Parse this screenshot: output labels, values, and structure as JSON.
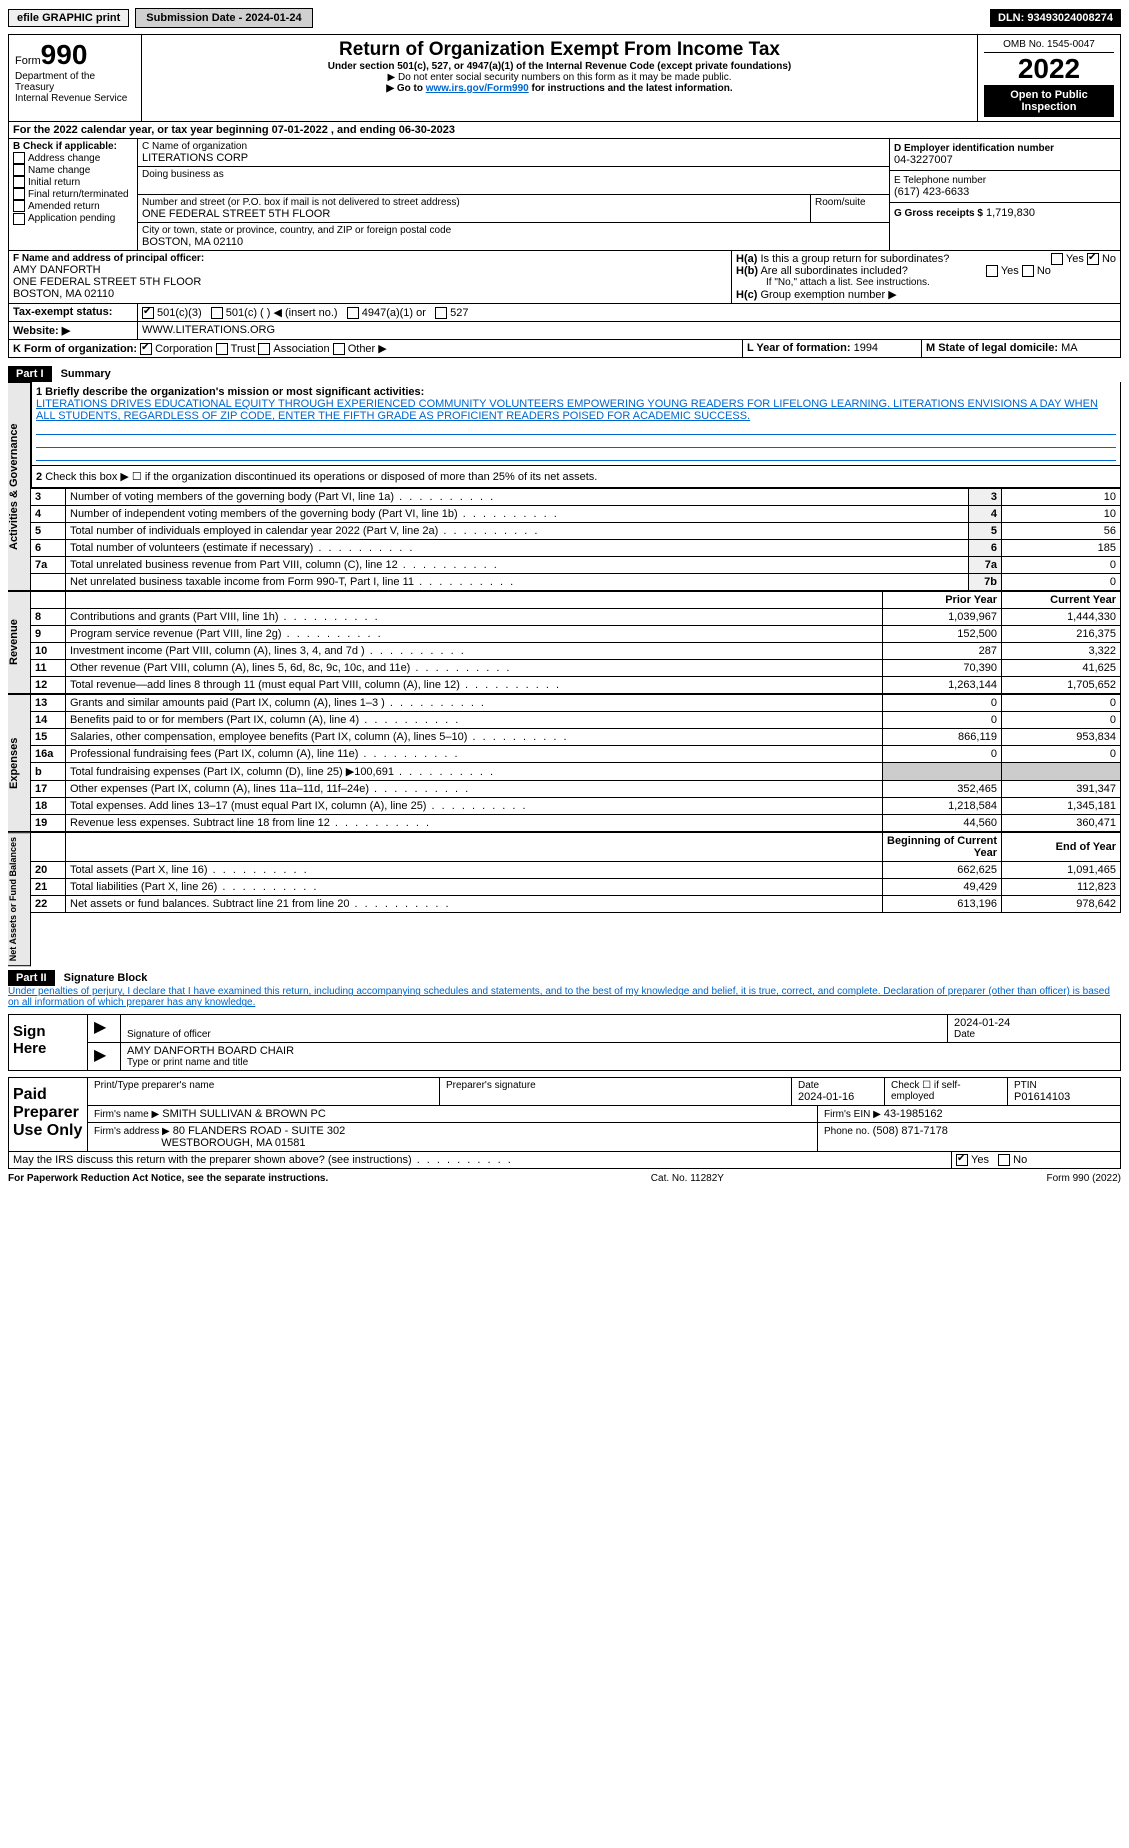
{
  "topbar": {
    "efile": "efile GRAPHIC print",
    "submission_label": "Submission Date - 2024-01-24",
    "dln": "DLN: 93493024008274"
  },
  "header": {
    "form_prefix": "Form",
    "form_number": "990",
    "dept": "Department of the Treasury",
    "irs": "Internal Revenue Service",
    "title": "Return of Organization Exempt From Income Tax",
    "subtitle": "Under section 501(c), 527, or 4947(a)(1) of the Internal Revenue Code (except private foundations)",
    "note1": "▶ Do not enter social security numbers on this form as it may be made public.",
    "note2_pre": "▶ Go to ",
    "note2_link": "www.irs.gov/Form990",
    "note2_post": " for instructions and the latest information.",
    "omb": "OMB No. 1545-0047",
    "year": "2022",
    "open": "Open to Public Inspection"
  },
  "A": {
    "text": "For the 2022 calendar year, or tax year beginning 07-01-2022   , and ending 06-30-2023"
  },
  "B": {
    "label": "B Check if applicable:",
    "items": [
      "Address change",
      "Name change",
      "Initial return",
      "Final return/terminated",
      "Amended return",
      "Application pending"
    ]
  },
  "C": {
    "name_label": "C Name of organization",
    "name": "LITERATIONS CORP",
    "dba_label": "Doing business as",
    "street_label": "Number and street (or P.O. box if mail is not delivered to street address)",
    "room_label": "Room/suite",
    "street": "ONE FEDERAL STREET 5TH FLOOR",
    "city_label": "City or town, state or province, country, and ZIP or foreign postal code",
    "city": "BOSTON, MA  02110"
  },
  "D": {
    "label": "D Employer identification number",
    "value": "04-3227007"
  },
  "E": {
    "label": "E Telephone number",
    "value": "(617) 423-6633"
  },
  "G": {
    "label": "G Gross receipts $",
    "value": "1,719,830"
  },
  "F": {
    "label": "F Name and address of principal officer:",
    "name": "AMY DANFORTH",
    "addr1": "ONE FEDERAL STREET 5TH FLOOR",
    "addr2": "BOSTON, MA  02110"
  },
  "H": {
    "a": "Is this a group return for subordinates?",
    "b": "Are all subordinates included?",
    "note": "If \"No,\" attach a list. See instructions.",
    "c": "Group exemption number ▶",
    "yes": "Yes",
    "no": "No"
  },
  "I": {
    "label": "Tax-exempt status:",
    "opts": [
      "501(c)(3)",
      "501(c) (  ) ◀ (insert no.)",
      "4947(a)(1) or",
      "527"
    ]
  },
  "J": {
    "label": "Website: ▶",
    "value": "WWW.LITERATIONS.ORG"
  },
  "K": {
    "label": "K Form of organization:",
    "opts": [
      "Corporation",
      "Trust",
      "Association",
      "Other ▶"
    ]
  },
  "L": {
    "label": "L Year of formation:",
    "value": "1994"
  },
  "M": {
    "label": "M State of legal domicile:",
    "value": "MA"
  },
  "part1": {
    "header": "Part I",
    "title": "Summary",
    "l1_label": "1 Briefly describe the organization's mission or most significant activities:",
    "l1_text": "LITERATIONS DRIVES EDUCATIONAL EQUITY THROUGH EXPERIENCED COMMUNITY VOLUNTEERS EMPOWERING YOUNG READERS FOR LIFELONG LEARNING. LITERATIONS ENVISIONS A DAY WHEN ALL STUDENTS, REGARDLESS OF ZIP CODE, ENTER THE FIFTH GRADE AS PROFICIENT READERS POISED FOR ACADEMIC SUCCESS.",
    "l2": "Check this box ▶ ☐  if the organization discontinued its operations or disposed of more than 25% of its net assets.",
    "governance_rows": [
      {
        "n": "3",
        "t": "Number of voting members of the governing body (Part VI, line 1a)",
        "box": "3",
        "v": "10"
      },
      {
        "n": "4",
        "t": "Number of independent voting members of the governing body (Part VI, line 1b)",
        "box": "4",
        "v": "10"
      },
      {
        "n": "5",
        "t": "Total number of individuals employed in calendar year 2022 (Part V, line 2a)",
        "box": "5",
        "v": "56"
      },
      {
        "n": "6",
        "t": "Total number of volunteers (estimate if necessary)",
        "box": "6",
        "v": "185"
      },
      {
        "n": "7a",
        "t": "Total unrelated business revenue from Part VIII, column (C), line 12",
        "box": "7a",
        "v": "0"
      },
      {
        "n": "",
        "t": "Net unrelated business taxable income from Form 990-T, Part I, line 11",
        "box": "7b",
        "v": "0"
      }
    ],
    "col_prior": "Prior Year",
    "col_current": "Current Year",
    "revenue_rows": [
      {
        "n": "8",
        "t": "Contributions and grants (Part VIII, line 1h)",
        "p": "1,039,967",
        "c": "1,444,330"
      },
      {
        "n": "9",
        "t": "Program service revenue (Part VIII, line 2g)",
        "p": "152,500",
        "c": "216,375"
      },
      {
        "n": "10",
        "t": "Investment income (Part VIII, column (A), lines 3, 4, and 7d )",
        "p": "287",
        "c": "3,322"
      },
      {
        "n": "11",
        "t": "Other revenue (Part VIII, column (A), lines 5, 6d, 8c, 9c, 10c, and 11e)",
        "p": "70,390",
        "c": "41,625"
      },
      {
        "n": "12",
        "t": "Total revenue—add lines 8 through 11 (must equal Part VIII, column (A), line 12)",
        "p": "1,263,144",
        "c": "1,705,652"
      }
    ],
    "expense_rows": [
      {
        "n": "13",
        "t": "Grants and similar amounts paid (Part IX, column (A), lines 1–3 )",
        "p": "0",
        "c": "0"
      },
      {
        "n": "14",
        "t": "Benefits paid to or for members (Part IX, column (A), line 4)",
        "p": "0",
        "c": "0"
      },
      {
        "n": "15",
        "t": "Salaries, other compensation, employee benefits (Part IX, column (A), lines 5–10)",
        "p": "866,119",
        "c": "953,834"
      },
      {
        "n": "16a",
        "t": "Professional fundraising fees (Part IX, column (A), line 11e)",
        "p": "0",
        "c": "0"
      },
      {
        "n": "b",
        "t": "Total fundraising expenses (Part IX, column (D), line 25) ▶100,691",
        "p": "",
        "c": ""
      },
      {
        "n": "17",
        "t": "Other expenses (Part IX, column (A), lines 11a–11d, 11f–24e)",
        "p": "352,465",
        "c": "391,347"
      },
      {
        "n": "18",
        "t": "Total expenses. Add lines 13–17 (must equal Part IX, column (A), line 25)",
        "p": "1,218,584",
        "c": "1,345,181"
      },
      {
        "n": "19",
        "t": "Revenue less expenses. Subtract line 18 from line 12",
        "p": "44,560",
        "c": "360,471"
      }
    ],
    "col_begin": "Beginning of Current Year",
    "col_end": "End of Year",
    "net_rows": [
      {
        "n": "20",
        "t": "Total assets (Part X, line 16)",
        "p": "662,625",
        "c": "1,091,465"
      },
      {
        "n": "21",
        "t": "Total liabilities (Part X, line 26)",
        "p": "49,429",
        "c": "112,823"
      },
      {
        "n": "22",
        "t": "Net assets or fund balances. Subtract line 21 from line 20",
        "p": "613,196",
        "c": "978,642"
      }
    ]
  },
  "part2": {
    "header": "Part II",
    "title": "Signature Block",
    "decl": "Under penalties of perjury, I declare that I have examined this return, including accompanying schedules and statements, and to the best of my knowledge and belief, it is true, correct, and complete. Declaration of preparer (other than officer) is based on all information of which preparer has any knowledge."
  },
  "sign": {
    "label": "Sign Here",
    "sig_label": "Signature of officer",
    "date": "2024-01-24",
    "date_label": "Date",
    "name": "AMY DANFORTH  BOARD CHAIR",
    "name_label": "Type or print name and title"
  },
  "paid": {
    "label": "Paid Preparer Use Only",
    "h_name": "Print/Type preparer's name",
    "h_sig": "Preparer's signature",
    "h_date": "Date",
    "date": "2024-01-16",
    "h_check": "Check ☐ if self-employed",
    "h_ptin": "PTIN",
    "ptin": "P01614103",
    "firm_label": "Firm's name   ▶",
    "firm": "SMITH SULLIVAN & BROWN PC",
    "ein_label": "Firm's EIN ▶",
    "ein": "43-1985162",
    "addr_label": "Firm's address ▶",
    "addr1": "80 FLANDERS ROAD - SUITE 302",
    "addr2": "WESTBOROUGH, MA  01581",
    "phone_label": "Phone no.",
    "phone": "(508) 871-7178"
  },
  "discuss": {
    "text": "May the IRS discuss this return with the preparer shown above? (see instructions)",
    "yes": "Yes",
    "no": "No"
  },
  "footer": {
    "left": "For Paperwork Reduction Act Notice, see the separate instructions.",
    "mid": "Cat. No. 11282Y",
    "right": "Form 990 (2022)"
  }
}
